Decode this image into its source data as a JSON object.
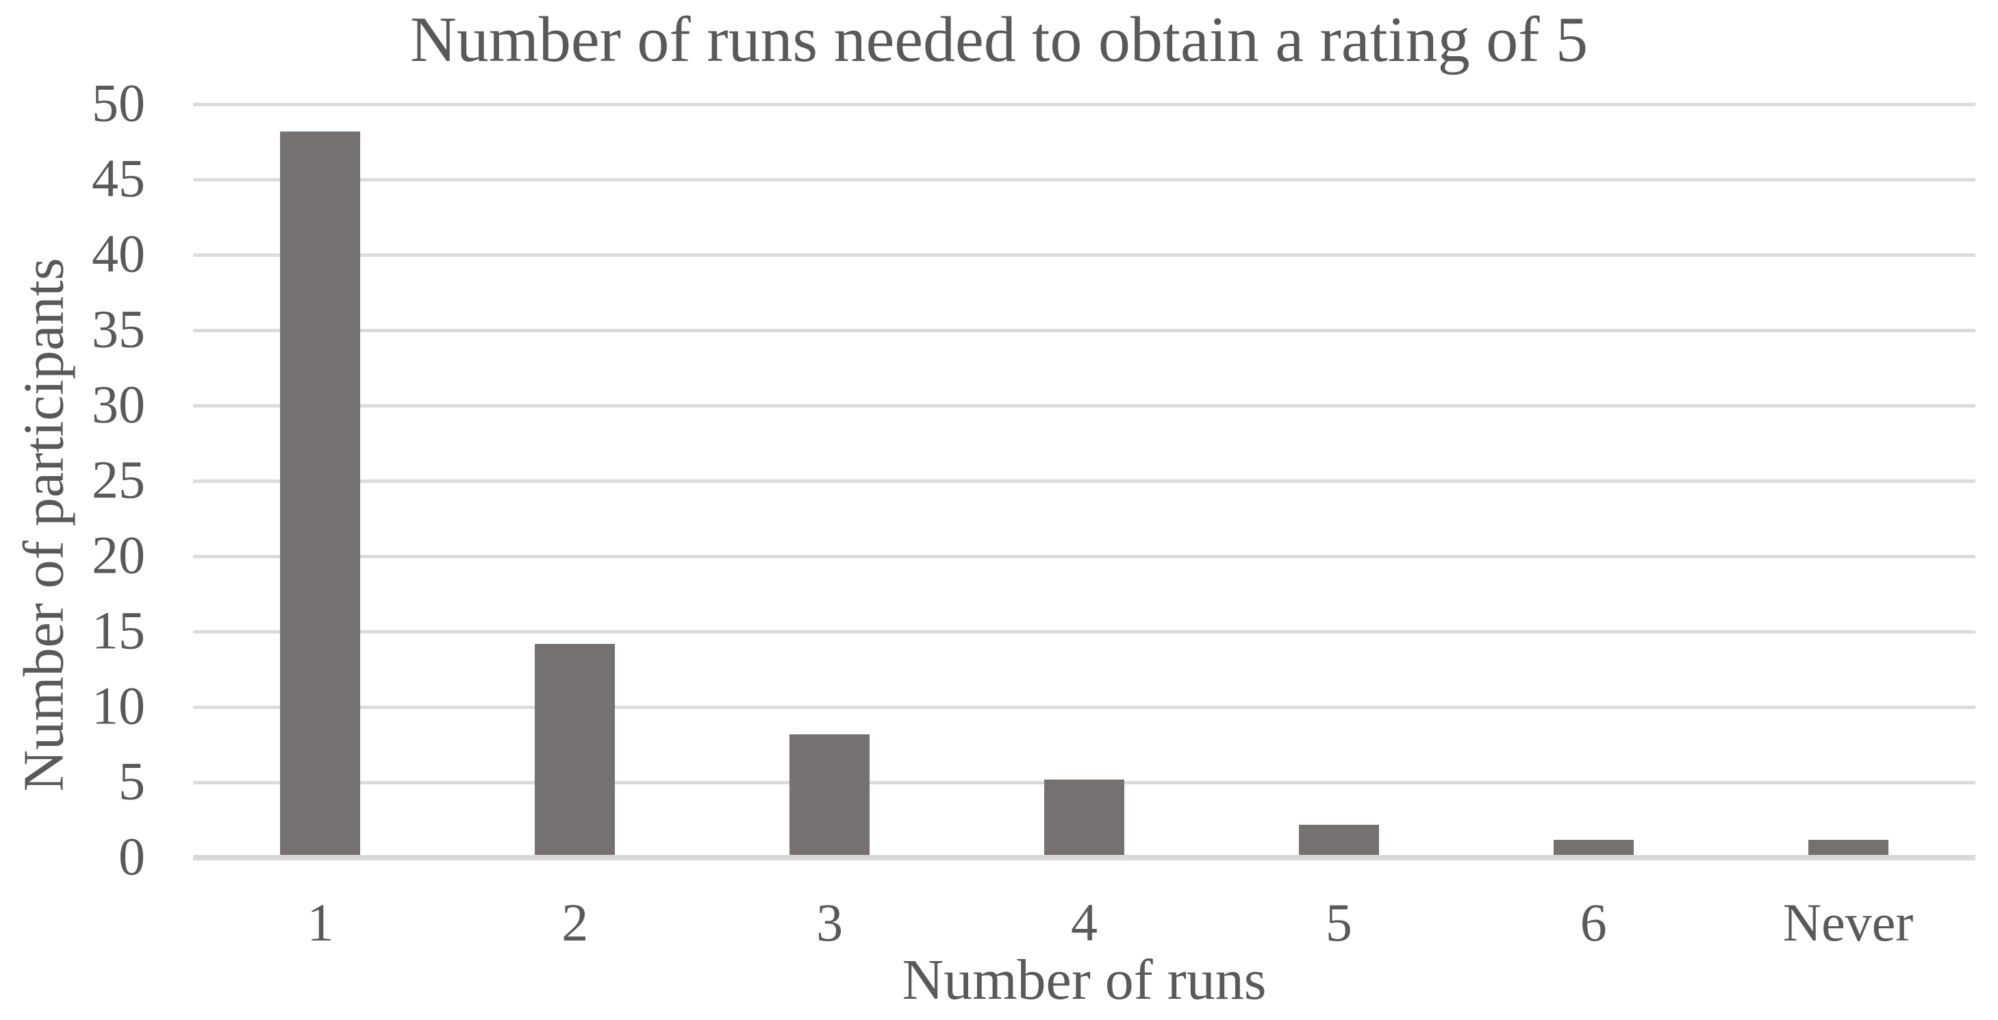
{
  "chart_data": {
    "type": "bar",
    "title": "Number of runs needed to obtain a rating of 5",
    "xlabel": "Number of runs",
    "ylabel": "Number of participants",
    "categories": [
      "1",
      "2",
      "3",
      "4",
      "5",
      "6",
      "Never"
    ],
    "values": [
      48,
      14,
      8,
      5,
      2,
      1,
      1
    ],
    "ylim": [
      0,
      50
    ],
    "yticks": [
      0,
      5,
      10,
      15,
      20,
      25,
      30,
      35,
      40,
      45,
      50
    ],
    "grid": "horizontal",
    "legend": "none",
    "colors": {
      "bar": "#747170",
      "gridline": "#DBDBDB",
      "axis_line": "#D9D9D9",
      "text": "#595959",
      "background": "#FFFFFF"
    }
  }
}
